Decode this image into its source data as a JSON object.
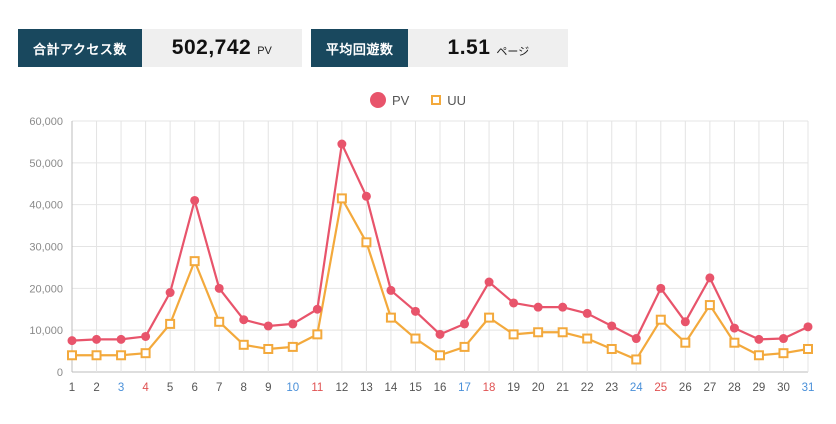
{
  "stats": [
    {
      "label": "合計アクセス数",
      "value": "502,742",
      "unit": "PV"
    },
    {
      "label": "平均回遊数",
      "value": "1.51",
      "unit": "ページ"
    }
  ],
  "legend": [
    {
      "name": "PV",
      "marker": "circle-filled",
      "color": "#e8546b"
    },
    {
      "name": "UU",
      "marker": "square-open",
      "color": "#f3a93c"
    }
  ],
  "chart_data": {
    "type": "line",
    "title": "",
    "xlabel": "",
    "ylabel": "",
    "x": [
      1,
      2,
      3,
      4,
      5,
      6,
      7,
      8,
      9,
      10,
      11,
      12,
      13,
      14,
      15,
      16,
      17,
      18,
      19,
      20,
      21,
      22,
      23,
      24,
      25,
      26,
      27,
      28,
      29,
      30,
      31
    ],
    "series": [
      {
        "name": "PV",
        "color": "#e8546b",
        "marker": "circle",
        "values": [
          7500,
          7800,
          7800,
          8500,
          19000,
          41000,
          20000,
          12500,
          11000,
          11500,
          15000,
          54500,
          42000,
          19500,
          14500,
          9000,
          11500,
          21500,
          16500,
          15500,
          15500,
          14000,
          11000,
          8000,
          20000,
          12000,
          22500,
          10500,
          7800,
          8000,
          10800
        ]
      },
      {
        "name": "UU",
        "color": "#f3a93c",
        "marker": "square",
        "values": [
          4000,
          4000,
          4000,
          4500,
          11500,
          26500,
          12000,
          6500,
          5500,
          6000,
          9000,
          41500,
          31000,
          13000,
          8000,
          4000,
          6000,
          13000,
          9000,
          9500,
          9500,
          8000,
          5500,
          3000,
          12500,
          7000,
          16000,
          7000,
          4000,
          4500,
          5500
        ]
      }
    ],
    "ylim": [
      0,
      60000
    ],
    "ytick_step": 10000,
    "ytick_labels": [
      "0",
      "10,000",
      "20,000",
      "30,000",
      "40,000",
      "50,000",
      "60,000"
    ],
    "grid": true,
    "legend_position": "top-center",
    "x_label_colors": {
      "default": "#555555",
      "saturday": "#4a90d9",
      "sunday": "#e05252",
      "saturdays": [
        3,
        10,
        17,
        24,
        31
      ],
      "sundays": [
        4,
        11,
        18,
        25
      ]
    }
  }
}
